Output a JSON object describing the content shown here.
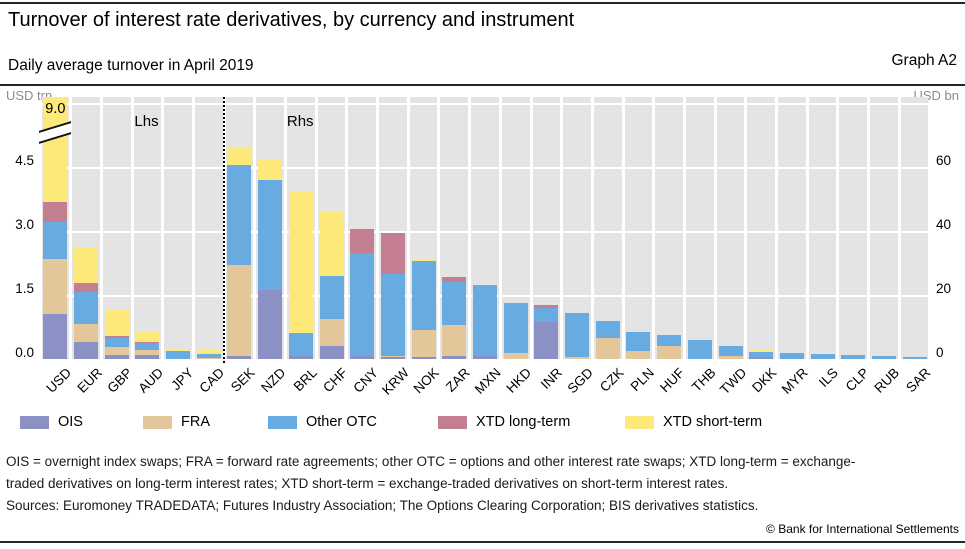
{
  "header": {
    "title": "Turnover of interest rate derivatives, by currency and instrument",
    "subtitle": "Daily average turnover in April 2019",
    "graph_label": "Graph A2"
  },
  "axes": {
    "left_unit": "USD trn",
    "right_unit": "USD bn",
    "left_ticks": [
      "4.5",
      "3.0",
      "1.5",
      "0.0"
    ],
    "right_ticks": [
      "60",
      "40",
      "20",
      "0"
    ]
  },
  "region_labels": {
    "lhs": "Lhs",
    "rhs": "Rhs"
  },
  "chart_data": {
    "type": "bar",
    "stacked": true,
    "title": "Turnover of interest rate derivatives, by currency and instrument",
    "subtitle": "Daily average turnover in April 2019",
    "left_axis": {
      "unit": "USD trn",
      "ticks": [
        0.0,
        1.5,
        3.0,
        4.5
      ],
      "range": [
        0,
        6.0
      ]
    },
    "right_axis": {
      "unit": "USD bn",
      "ticks": [
        0,
        20,
        40,
        60
      ],
      "range": [
        0,
        80
      ]
    },
    "grid": true,
    "series_names": [
      "OIS",
      "FRA",
      "Other OTC",
      "XTD long-term",
      "XTD short-term"
    ],
    "colors": {
      "OIS": "#8b90c5",
      "FRA": "#e3c79b",
      "Other OTC": "#68abe0",
      "XTD long-term": "#c37e92",
      "XTD short-term": "#fce97a"
    },
    "categories": [
      "USD",
      "EUR",
      "GBP",
      "AUD",
      "JPY",
      "CAD",
      "SEK",
      "NZD",
      "BRL",
      "CHF",
      "CNY",
      "KRW",
      "NOK",
      "ZAR",
      "MXN",
      "HKD",
      "INR",
      "SGD",
      "CZK",
      "PLN",
      "HUF",
      "THB",
      "TWD",
      "DKK",
      "MYR",
      "ILS",
      "CLP",
      "RUB",
      "SAR"
    ],
    "bars": [
      {
        "currency": "USD",
        "scale": "lhs",
        "values": [
          1.05,
          1.3,
          0.87,
          0.47,
          5.31
        ],
        "total": 9.0,
        "truncated": true,
        "annotation": "9.0"
      },
      {
        "currency": "EUR",
        "scale": "lhs",
        "values": [
          0.39,
          0.43,
          0.74,
          0.23,
          0.82
        ]
      },
      {
        "currency": "GBP",
        "scale": "lhs",
        "values": [
          0.1,
          0.18,
          0.22,
          0.05,
          0.59
        ]
      },
      {
        "currency": "AUD",
        "scale": "lhs",
        "values": [
          0.1,
          0.1,
          0.17,
          0.03,
          0.23
        ]
      },
      {
        "currency": "JPY",
        "scale": "lhs",
        "values": [
          0.01,
          0.0,
          0.17,
          0.02,
          0.01
        ]
      },
      {
        "currency": "CAD",
        "scale": "lhs",
        "values": [
          0.0,
          0.02,
          0.09,
          0.0,
          0.09
        ]
      },
      {
        "currency": "SEK",
        "scale": "rhs",
        "values": [
          1.0,
          28.5,
          31.0,
          0,
          5.5
        ]
      },
      {
        "currency": "NZD",
        "scale": "rhs",
        "values": [
          21.5,
          0,
          34.5,
          0,
          6.5
        ]
      },
      {
        "currency": "BRL",
        "scale": "rhs",
        "values": [
          1.0,
          0,
          7.0,
          0,
          44.5
        ]
      },
      {
        "currency": "CHF",
        "scale": "rhs",
        "values": [
          4.0,
          8.5,
          13.5,
          0,
          20.0
        ]
      },
      {
        "currency": "CNY",
        "scale": "rhs",
        "values": [
          1.0,
          0,
          32.0,
          7.5,
          0
        ]
      },
      {
        "currency": "KRW",
        "scale": "rhs",
        "values": [
          0.5,
          0.5,
          25.5,
          13.0,
          0
        ]
      },
      {
        "currency": "NOK",
        "scale": "rhs",
        "values": [
          0.5,
          8.5,
          21.5,
          0,
          0.5
        ]
      },
      {
        "currency": "ZAR",
        "scale": "rhs",
        "values": [
          1.0,
          9.5,
          13.5,
          1.5,
          0
        ]
      },
      {
        "currency": "MXN",
        "scale": "rhs",
        "values": [
          1.0,
          0,
          22.0,
          0,
          0
        ]
      },
      {
        "currency": "HKD",
        "scale": "rhs",
        "values": [
          0,
          2.0,
          15.5,
          0,
          0
        ]
      },
      {
        "currency": "INR",
        "scale": "rhs",
        "values": [
          11.5,
          0,
          4.5,
          1.0,
          0
        ]
      },
      {
        "currency": "SGD",
        "scale": "rhs",
        "values": [
          0,
          0.5,
          14.0,
          0,
          0
        ]
      },
      {
        "currency": "CZK",
        "scale": "rhs",
        "values": [
          0,
          6.5,
          5.5,
          0,
          0
        ]
      },
      {
        "currency": "PLN",
        "scale": "rhs",
        "values": [
          0,
          2.5,
          6.0,
          0,
          0
        ]
      },
      {
        "currency": "HUF",
        "scale": "rhs",
        "values": [
          0,
          4.0,
          3.5,
          0,
          0
        ]
      },
      {
        "currency": "THB",
        "scale": "rhs",
        "values": [
          0,
          0,
          6.0,
          0,
          0
        ]
      },
      {
        "currency": "TWD",
        "scale": "rhs",
        "values": [
          0,
          1.0,
          3.0,
          0,
          0
        ]
      },
      {
        "currency": "DKK",
        "scale": "rhs",
        "values": [
          0.5,
          0,
          1.8,
          0,
          0.4
        ]
      },
      {
        "currency": "MYR",
        "scale": "rhs",
        "values": [
          0,
          0,
          1.9,
          0,
          0
        ]
      },
      {
        "currency": "ILS",
        "scale": "rhs",
        "values": [
          0,
          0,
          1.5,
          0,
          0
        ]
      },
      {
        "currency": "CLP",
        "scale": "rhs",
        "values": [
          0,
          0,
          1.4,
          0,
          0
        ]
      },
      {
        "currency": "RUB",
        "scale": "rhs",
        "values": [
          0,
          0,
          1.0,
          0,
          0
        ]
      },
      {
        "currency": "SAR",
        "scale": "rhs",
        "values": [
          0,
          0,
          0.7,
          0,
          0
        ]
      }
    ],
    "legend_position": "bottom"
  },
  "legend": [
    {
      "label": "OIS"
    },
    {
      "label": "FRA"
    },
    {
      "label": "Other OTC"
    },
    {
      "label": "XTD long-term"
    },
    {
      "label": "XTD short-term"
    }
  ],
  "footnotes": {
    "line1": "OIS = overnight index swaps; FRA = forward rate agreements; other OTC = options and other interest rate swaps; XTD long-term = exchange-",
    "line2": "traded derivatives on long-term interest rates; XTD short-term = exchange-traded derivatives on short-term interest rates.",
    "sources": "Sources: Euromoney TRADEDATA; Futures Industry Association; The Options Clearing Corporation; BIS derivatives statistics."
  },
  "copyright": "© Bank for International Settlements"
}
